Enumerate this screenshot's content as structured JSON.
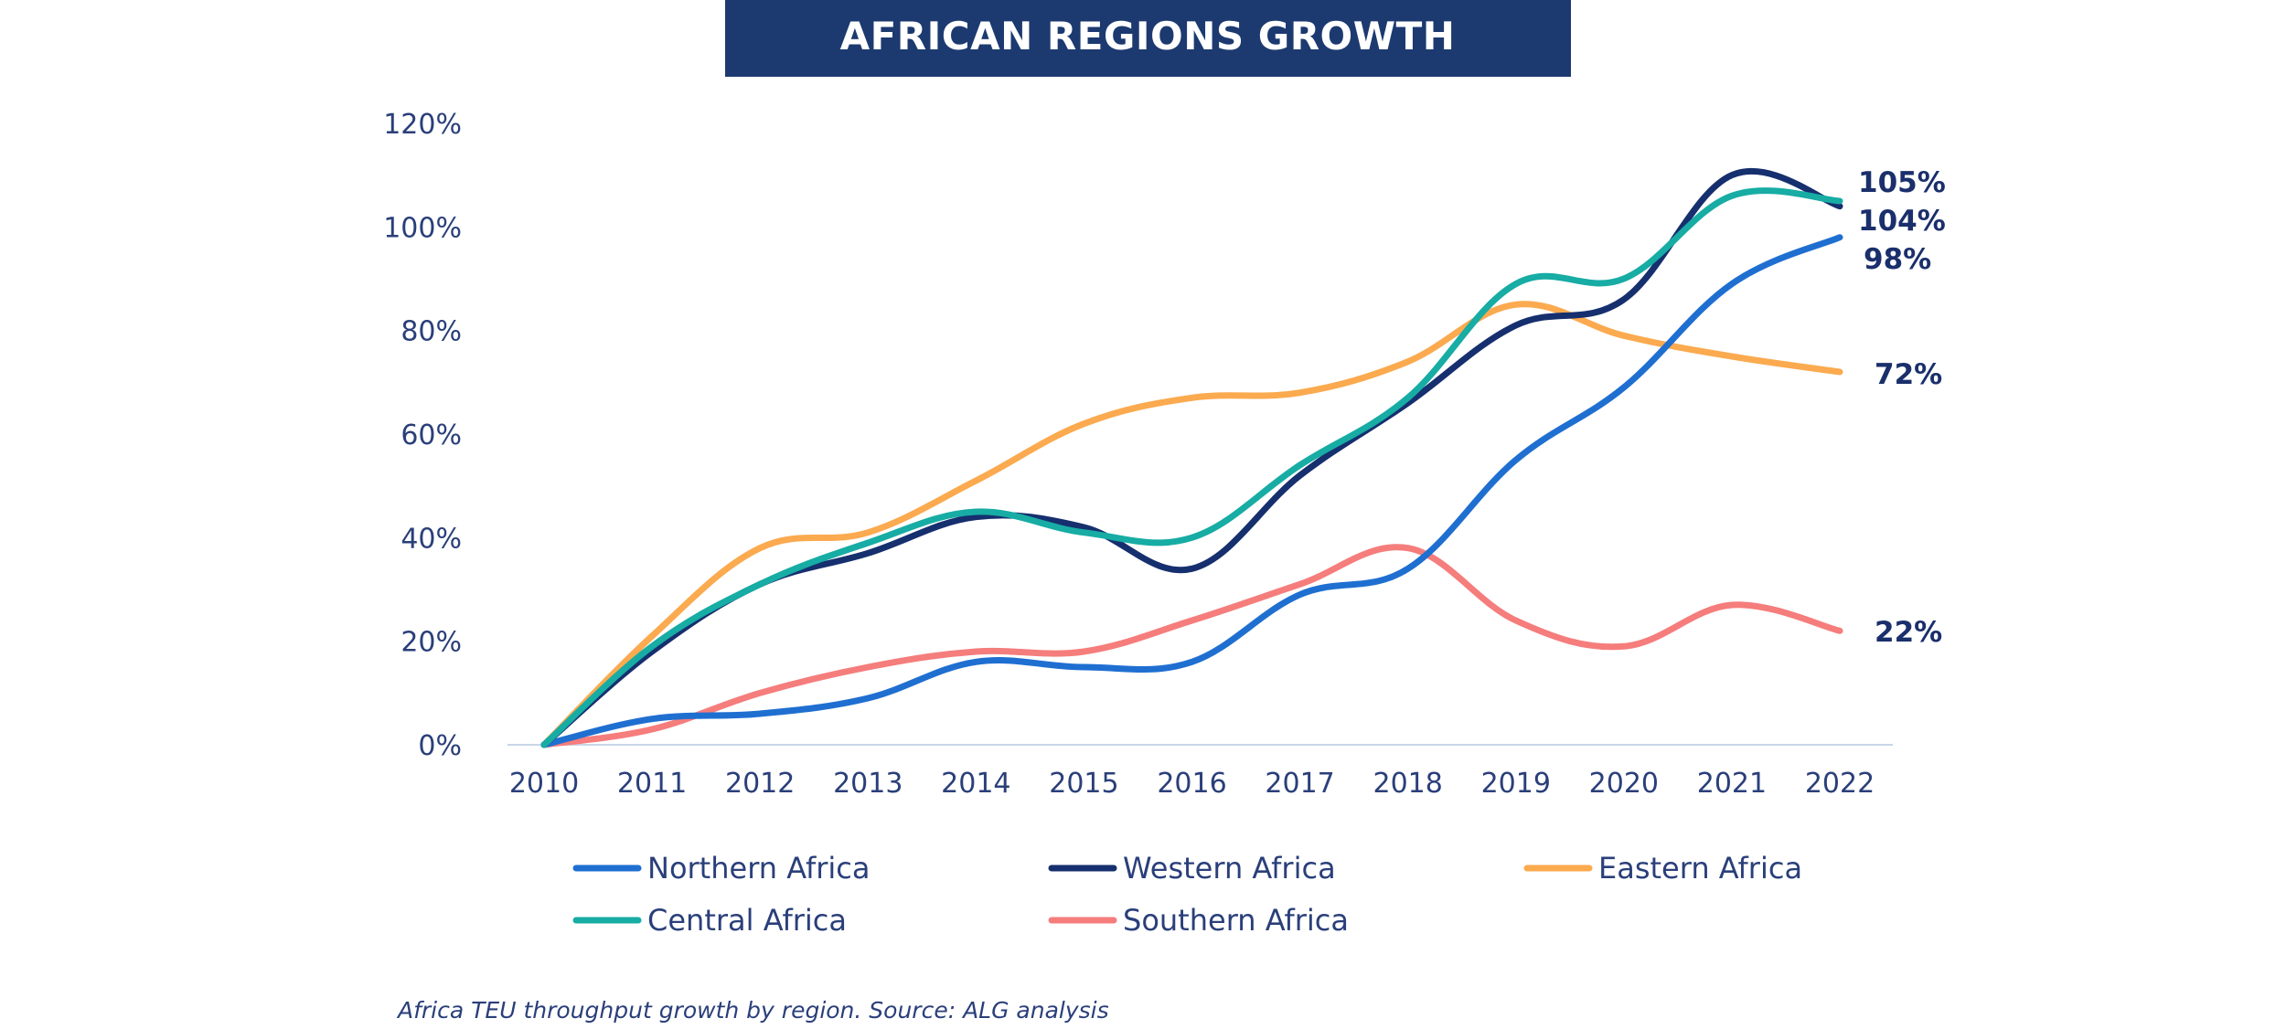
{
  "chart_data": {
    "type": "line",
    "title": "AFRICAN REGIONS GROWTH",
    "caption": "Africa TEU throughput growth by region. Source: ALG analysis",
    "x": [
      "2010",
      "2011",
      "2012",
      "2013",
      "2014",
      "2015",
      "2016",
      "2017",
      "2018",
      "2019",
      "2020",
      "2021",
      "2022"
    ],
    "ylim": [
      0,
      120
    ],
    "yticks": [
      0,
      20,
      40,
      60,
      80,
      100,
      120
    ],
    "ytick_labels": [
      "0%",
      "20%",
      "40%",
      "60%",
      "80%",
      "100%",
      "120%"
    ],
    "legend_position": "bottom",
    "series": [
      {
        "name": "Northern Africa",
        "color": "#1f6fd1",
        "values": [
          0,
          5,
          6,
          9,
          16,
          15,
          16,
          29,
          34,
          55,
          69,
          89,
          98
        ],
        "end_label": "98%"
      },
      {
        "name": "Western Africa",
        "color": "#162f6e",
        "values": [
          0,
          18,
          31,
          37,
          44,
          42,
          34,
          52,
          66,
          81,
          86,
          110,
          104
        ],
        "end_label": "104%"
      },
      {
        "name": "Eastern Africa",
        "color": "#fbaa4f",
        "values": [
          0,
          21,
          38,
          41,
          51,
          62,
          67,
          68,
          74,
          85,
          79,
          75,
          72
        ],
        "end_label": "72%"
      },
      {
        "name": "Central Africa",
        "color": "#17aca4",
        "values": [
          0,
          19,
          31,
          39,
          45,
          41,
          40,
          54,
          67,
          89,
          90,
          106,
          105
        ],
        "end_label": "105%"
      },
      {
        "name": "Southern Africa",
        "color": "#f57d7c",
        "values": [
          0,
          3,
          10,
          15,
          18,
          18,
          24,
          31,
          38,
          24,
          19,
          27,
          22
        ],
        "end_label": "22%"
      }
    ]
  }
}
